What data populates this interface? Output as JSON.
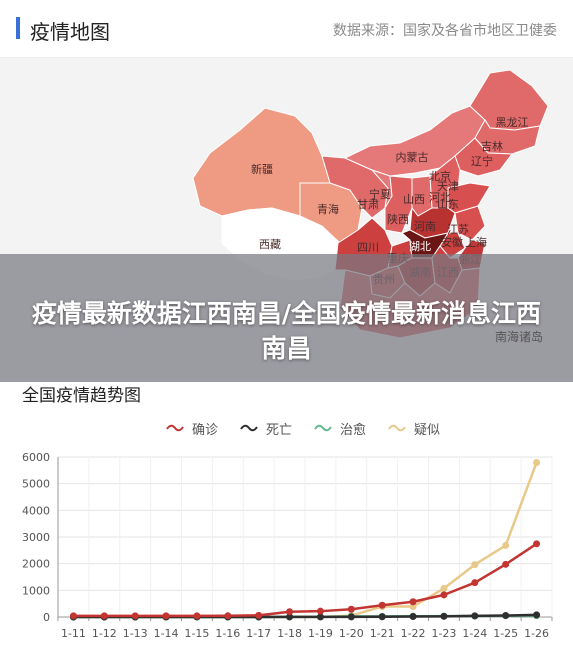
{
  "header": {
    "title": "疫情地图",
    "source": "数据来源：国家及各省市地区卫健委"
  },
  "map": {
    "provinces": [
      {
        "name": "黑龙江",
        "color": "#e06a6a"
      },
      {
        "name": "吉林",
        "color": "#e06a6a"
      },
      {
        "name": "辽宁",
        "color": "#dd5f5f"
      },
      {
        "name": "内蒙古",
        "color": "#e57878"
      },
      {
        "name": "北京",
        "color": "#d84f4f"
      },
      {
        "name": "天津",
        "color": "#dd5f5f"
      },
      {
        "name": "河北",
        "color": "#dd5f5f"
      },
      {
        "name": "山西",
        "color": "#e06a6a"
      },
      {
        "name": "山东",
        "color": "#d84f4f"
      },
      {
        "name": "宁夏",
        "color": "#e57878"
      },
      {
        "name": "甘肃",
        "color": "#e06a6a"
      },
      {
        "name": "陕西",
        "color": "#dd5f5f"
      },
      {
        "name": "河南",
        "color": "#b83232"
      },
      {
        "name": "江苏",
        "color": "#d84f4f"
      },
      {
        "name": "安徽",
        "color": "#cc4040"
      },
      {
        "name": "上海",
        "color": "#d84f4f"
      },
      {
        "name": "湖北",
        "color": "#6b1515"
      },
      {
        "name": "新疆",
        "color": "#ef9a82"
      },
      {
        "name": "青海",
        "color": "#ef9a82"
      },
      {
        "name": "西藏",
        "color": "#ffffff"
      },
      {
        "name": "四川",
        "color": "#cc4040"
      },
      {
        "name": "重庆",
        "color": "#cc4040"
      },
      {
        "name": "贵州",
        "color": "#dd5f5f"
      },
      {
        "name": "湖南",
        "color": "#c23838"
      },
      {
        "name": "浙江",
        "color": "#c23838"
      },
      {
        "name": "江西",
        "color": "#cc4040"
      }
    ],
    "corner_label": "南海诸岛"
  },
  "banner": {
    "headline": "疫情最新数据江西南昌/全国疫情最新消息江西南昌"
  },
  "trend": {
    "title": "全国疫情趋势图"
  },
  "chart_data": {
    "type": "line",
    "title": "全国疫情趋势图",
    "xlabel": "",
    "ylabel": "",
    "ylim": [
      0,
      6000
    ],
    "yticks": [
      0,
      1000,
      2000,
      3000,
      4000,
      5000,
      6000
    ],
    "grid": true,
    "legend_position": "top",
    "x": [
      "1-11",
      "1-12",
      "1-13",
      "1-14",
      "1-15",
      "1-16",
      "1-17",
      "1-18",
      "1-19",
      "1-20",
      "1-21",
      "1-22",
      "1-23",
      "1-24",
      "1-25",
      "1-26"
    ],
    "series": [
      {
        "name": "确诊",
        "color": "#c23531",
        "values": [
          41,
          41,
          41,
          41,
          41,
          45,
          62,
          198,
          218,
          291,
          440,
          571,
          830,
          1287,
          1975,
          2744
        ]
      },
      {
        "name": "死亡",
        "color": "#2f2f2f",
        "values": [
          1,
          1,
          1,
          1,
          2,
          2,
          2,
          3,
          3,
          6,
          9,
          17,
          25,
          41,
          56,
          80
        ]
      },
      {
        "name": "治愈",
        "color": "#61b98f",
        "values": [
          0,
          0,
          0,
          0,
          0,
          0,
          0,
          4,
          4,
          25,
          25,
          28,
          34,
          38,
          49,
          51
        ]
      },
      {
        "name": "疑似",
        "color": "#e8c98a",
        "values": [
          0,
          0,
          0,
          0,
          0,
          0,
          0,
          0,
          0,
          54,
          393,
          393,
          1072,
          1965,
          2684,
          5794
        ]
      }
    ]
  }
}
